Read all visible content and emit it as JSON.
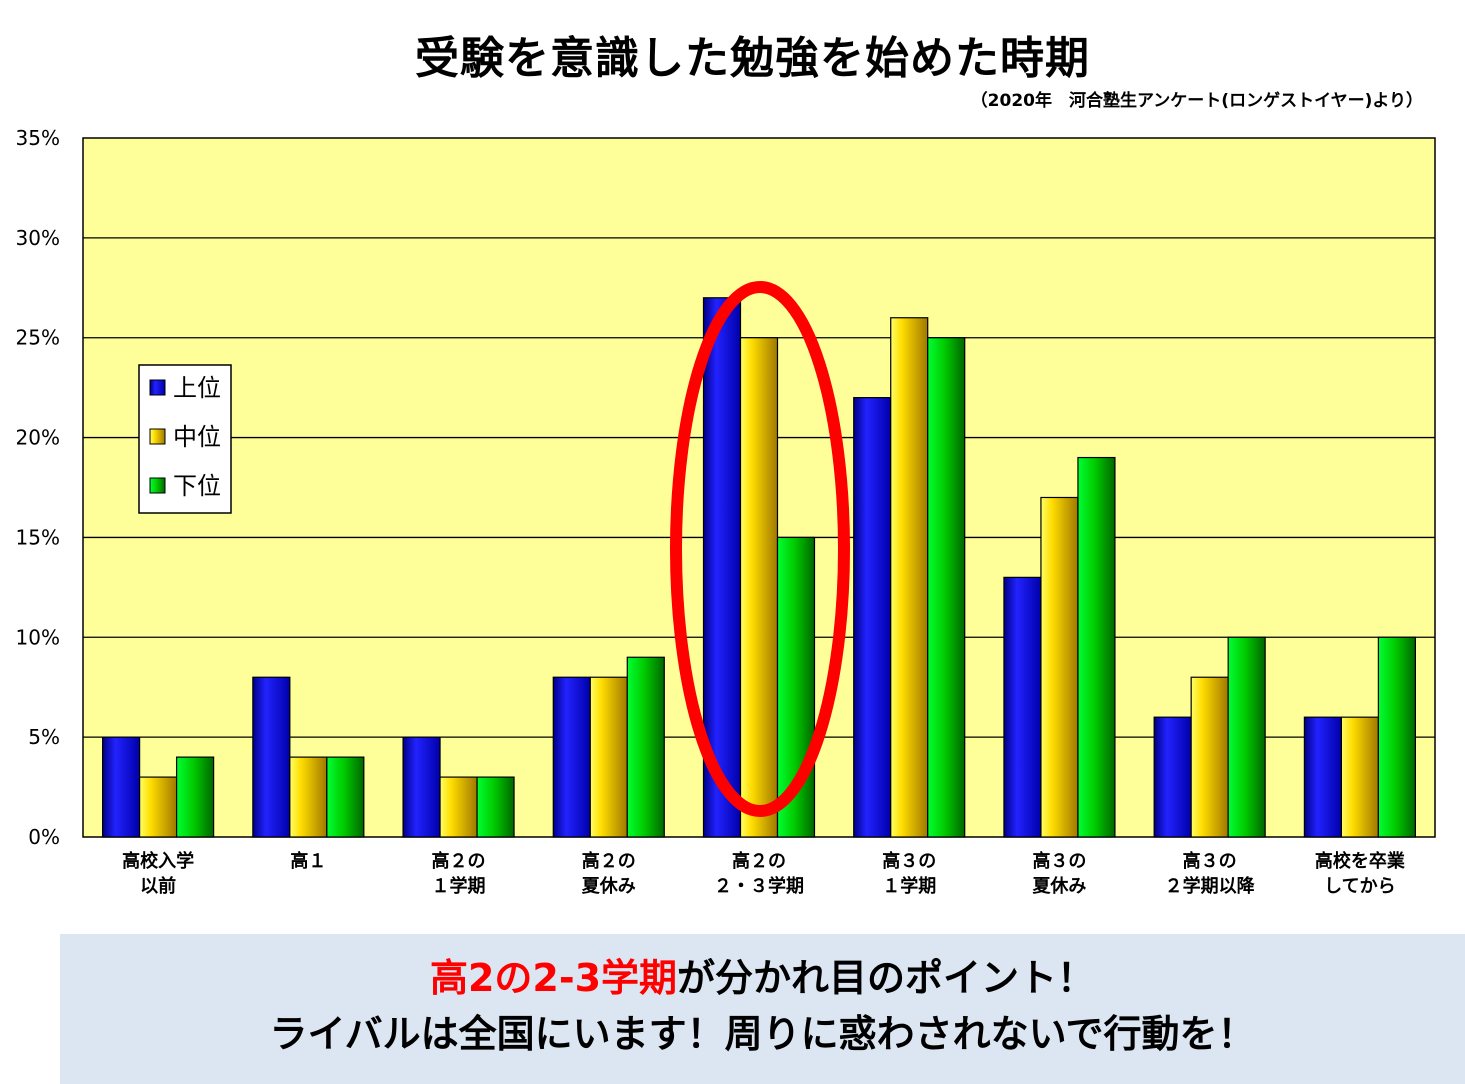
{
  "title": "受験を意識した勉強を始めた時期",
  "source": "（2020年　河合塾生アンケート(ロンゲストイヤー)より）",
  "banner": {
    "highlight": "高2の2-3学期",
    "line1_rest": "が分かれ目のポイント！",
    "line2": "ライバルは全国にいます！周りに惑わされないで行動を！"
  },
  "colors": {
    "plot_bg": "#ffff99",
    "blue": "#0000ee",
    "yellow": "#ffcc00",
    "green": "#00cc00",
    "circle": "#ff0000",
    "banner_bg": "#dce6f2"
  },
  "chart_data": {
    "type": "bar",
    "categories": [
      [
        "高校入学",
        "以前"
      ],
      [
        "高１",
        ""
      ],
      [
        "高２の",
        "１学期"
      ],
      [
        "高２の",
        "夏休み"
      ],
      [
        "高２の",
        "２・３学期"
      ],
      [
        "高３の",
        "１学期"
      ],
      [
        "高３の",
        "夏休み"
      ],
      [
        "高３の",
        "２学期以降"
      ],
      [
        "高校を卒業",
        "してから"
      ]
    ],
    "series": [
      {
        "name": "上位",
        "color": "blue",
        "values": [
          5,
          8,
          5,
          8,
          27,
          22,
          13,
          6,
          6
        ]
      },
      {
        "name": "中位",
        "color": "yellow",
        "values": [
          3,
          4,
          3,
          8,
          25,
          26,
          17,
          8,
          6
        ]
      },
      {
        "name": "下位",
        "color": "green",
        "values": [
          4,
          4,
          3,
          9,
          15,
          25,
          19,
          10,
          10
        ]
      }
    ],
    "ylim": [
      0,
      35
    ],
    "yticks": [
      "0%",
      "5%",
      "10%",
      "15%",
      "20%",
      "25%",
      "30%",
      "35%"
    ],
    "grid": true,
    "legend_position": "left",
    "highlighted_category": 4
  }
}
